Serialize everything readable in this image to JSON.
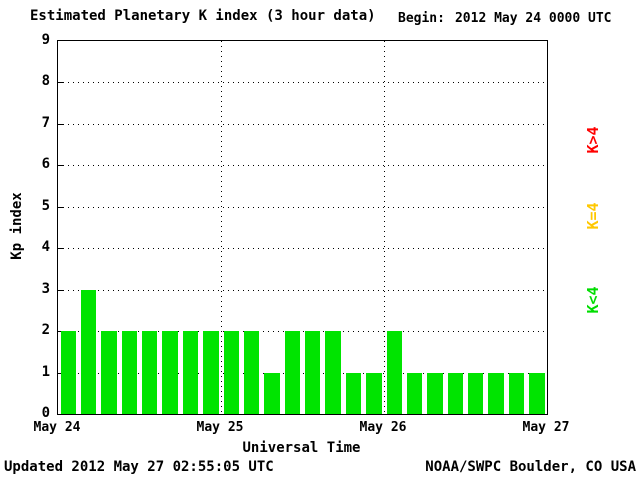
{
  "header": {
    "title": "Estimated Planetary K index (3 hour data)",
    "begin_label": "Begin:",
    "begin_value": "2012 May 24 0000 UTC"
  },
  "footer": {
    "updated": "Updated 2012 May 27 02:55:05 UTC",
    "source": "NOAA/SWPC Boulder, CO USA"
  },
  "legend": [
    {
      "label": "K>4",
      "color": "#ff0000"
    },
    {
      "label": "K=4",
      "color": "#ffc800"
    },
    {
      "label": "K<4",
      "color": "#00dd00"
    }
  ],
  "chart_data": {
    "type": "bar",
    "title": "Estimated Planetary K index (3 hour data)",
    "xlabel": "Universal Time",
    "ylabel": "Kp index",
    "ylim": [
      0,
      9
    ],
    "yticks": [
      0,
      1,
      2,
      3,
      4,
      5,
      6,
      7,
      8,
      9
    ],
    "xtick_labels": [
      "May 24",
      "May 25",
      "May 26",
      "May 27"
    ],
    "hours_per_bar": 3,
    "grid": "dotted",
    "legend_position": "right",
    "bar_color": "#00e400",
    "values": [
      2,
      3,
      2,
      2,
      2,
      2,
      2,
      2,
      2,
      2,
      1,
      2,
      2,
      2,
      1,
      1,
      2,
      1,
      1,
      1,
      1,
      1,
      1,
      1
    ]
  }
}
